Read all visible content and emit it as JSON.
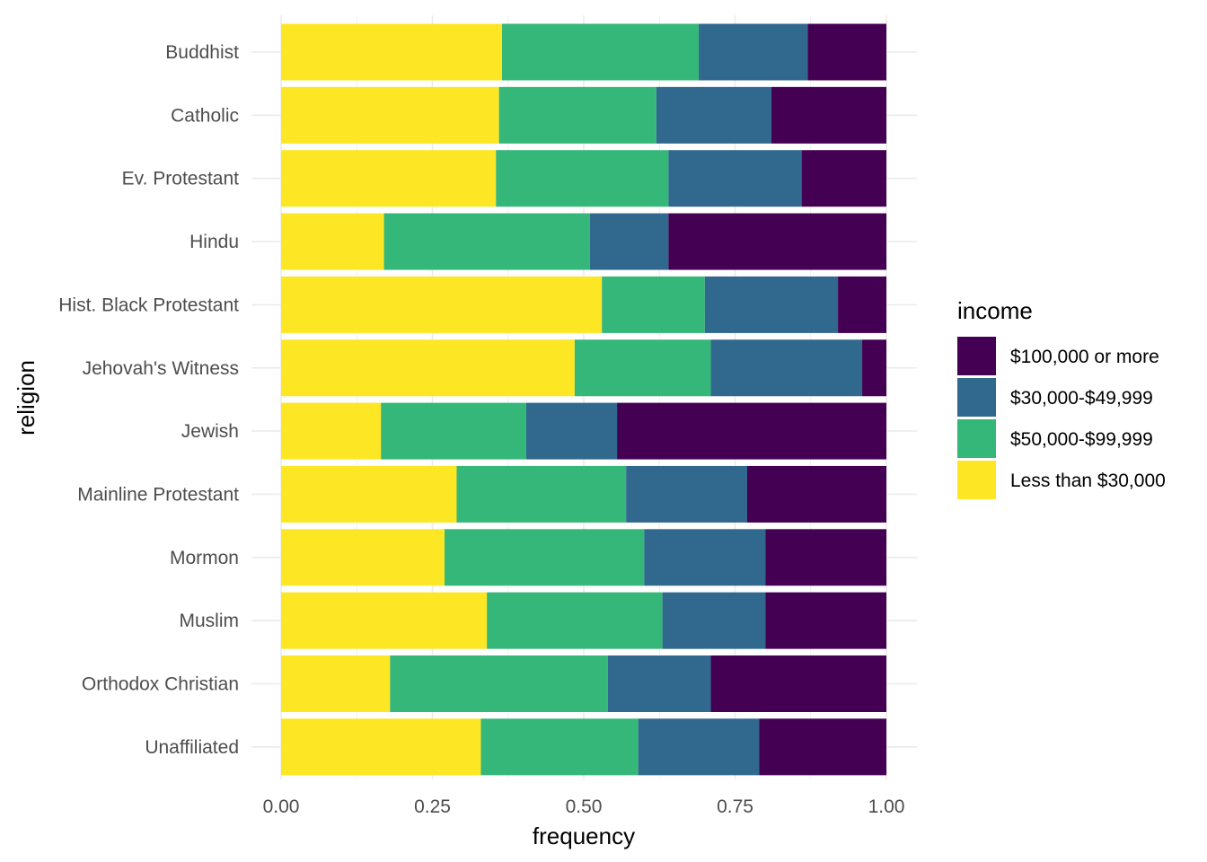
{
  "chart_data": {
    "type": "bar",
    "orientation": "horizontal",
    "stacked": "fill",
    "xlabel": "frequency",
    "ylabel": "religion",
    "xlim": [
      0,
      1
    ],
    "x_ticks": [
      0,
      0.25,
      0.5,
      0.75,
      1
    ],
    "x_tick_labels": [
      "0.00",
      "0.25",
      "0.50",
      "0.75",
      "1.00"
    ],
    "grid": true,
    "legend": {
      "title": "income",
      "position": "right"
    },
    "categories": [
      "Buddhist",
      "Catholic",
      "Ev. Protestant",
      "Hindu",
      "Hist. Black Protestant",
      "Jehovah's Witness",
      "Jewish",
      "Mainline Protestant",
      "Mormon",
      "Muslim",
      "Orthodox Christian",
      "Unaffiliated"
    ],
    "series": [
      {
        "name": "$100,000 or more",
        "color": "#440154",
        "values": [
          0.13,
          0.19,
          0.14,
          0.36,
          0.08,
          0.04,
          0.445,
          0.23,
          0.2,
          0.2,
          0.29,
          0.21
        ]
      },
      {
        "name": "$30,000-$49,999",
        "color": "#31688E",
        "values": [
          0.18,
          0.19,
          0.22,
          0.13,
          0.22,
          0.25,
          0.15,
          0.2,
          0.2,
          0.17,
          0.17,
          0.2
        ]
      },
      {
        "name": "$50,000-$99,999",
        "color": "#35B779",
        "values": [
          0.325,
          0.26,
          0.285,
          0.34,
          0.17,
          0.225,
          0.24,
          0.28,
          0.33,
          0.29,
          0.36,
          0.26
        ]
      },
      {
        "name": "Less than $30,000",
        "color": "#FDE725",
        "values": [
          0.365,
          0.36,
          0.355,
          0.17,
          0.53,
          0.485,
          0.165,
          0.29,
          0.27,
          0.34,
          0.18,
          0.33
        ]
      }
    ],
    "stack_order_left_to_right": [
      "Less than $30,000",
      "$50,000-$99,999",
      "$30,000-$49,999",
      "$100,000 or more"
    ],
    "colors": {
      "grid": "#EBEBEB",
      "axis_text": "#4D4D4D",
      "background": "#FFFFFF"
    }
  }
}
